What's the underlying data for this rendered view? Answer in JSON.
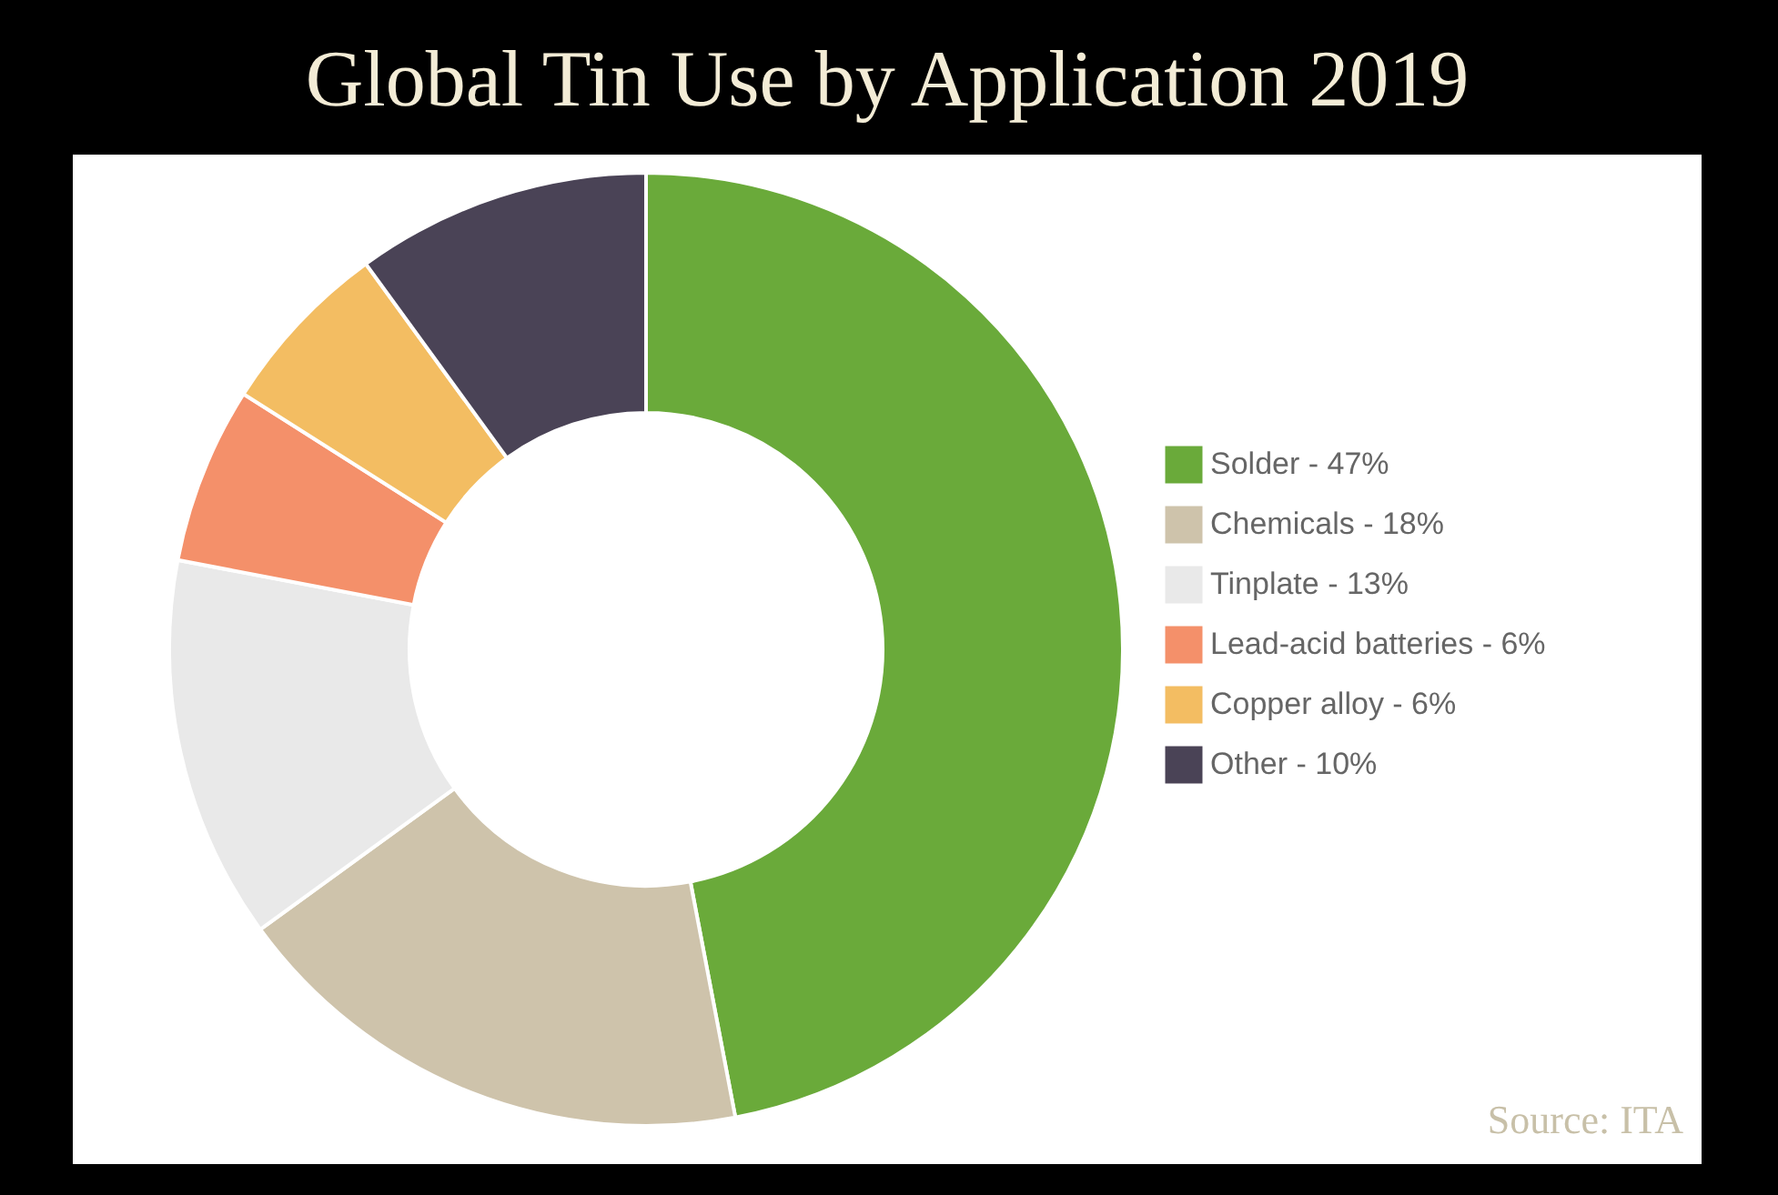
{
  "chart_data": {
    "type": "donut",
    "title": "Global Tin Use by Application 2019",
    "categories": [
      "Solder - 47%",
      "Chemicals - 18%",
      "Tinplate - 13%",
      "Lead-acid batteries - 6%",
      "Copper alloy - 6%",
      "Other - 10%"
    ],
    "values": [
      47,
      18,
      13,
      6,
      6,
      10
    ],
    "colors": [
      "#6aaa3a",
      "#cec3ab",
      "#e9e9e9",
      "#f4906a",
      "#f3bd62",
      "#4a4356"
    ],
    "legend": "right",
    "annotations": [
      "Source: ITA"
    ]
  }
}
